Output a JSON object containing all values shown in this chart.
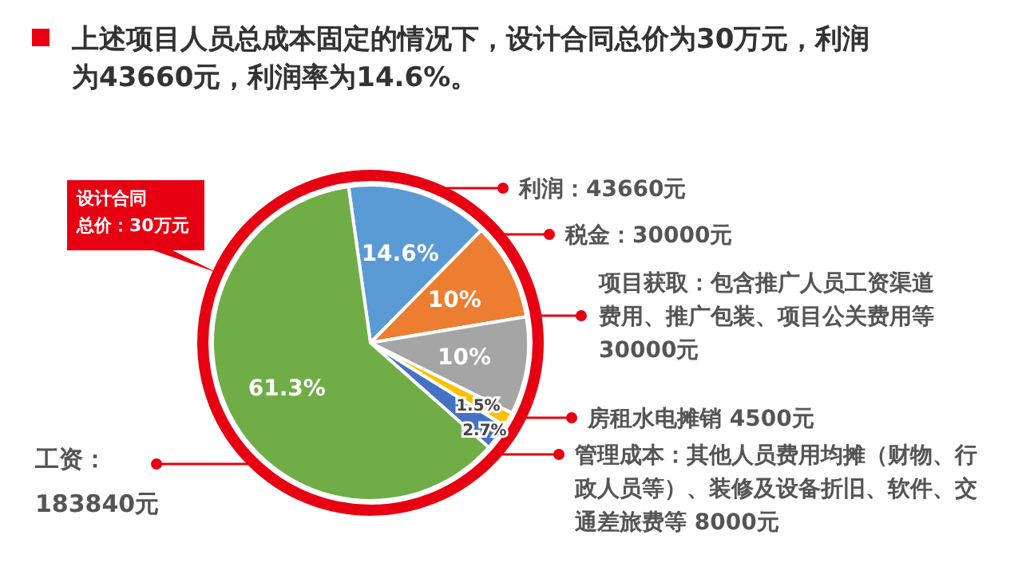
{
  "chart_data": {
    "type": "pie",
    "title": "上述项目人员总成本固定的情况下，设计合同总价为30万元，利润为43660元，利润率为14.6%。",
    "categories": [
      "利润：43660元",
      "税金：30000元",
      "项目获取：包含推广人员工资渠道费用、推广包装、项目公关费用等30000元",
      "房租水电摊销 4500元",
      "管理成本：其他人员费用均摊（财物、行政人员等）、装修及设备折旧、软件、交通差旅费等 8000元",
      "工资：183840元"
    ],
    "values": [
      14.6,
      10,
      10,
      1.5,
      2.7,
      61.3
    ],
    "colors": [
      "#5b9bd5",
      "#ed7d31",
      "#a5a5a5",
      "#ffc000",
      "#4472c4",
      "#70ad47"
    ],
    "value_labels": [
      "14.6%",
      "10%",
      "10%",
      "1.5%",
      "2.7%",
      "61.3%"
    ],
    "annotations": [
      "设计合同",
      "总价：30万元"
    ]
  }
}
